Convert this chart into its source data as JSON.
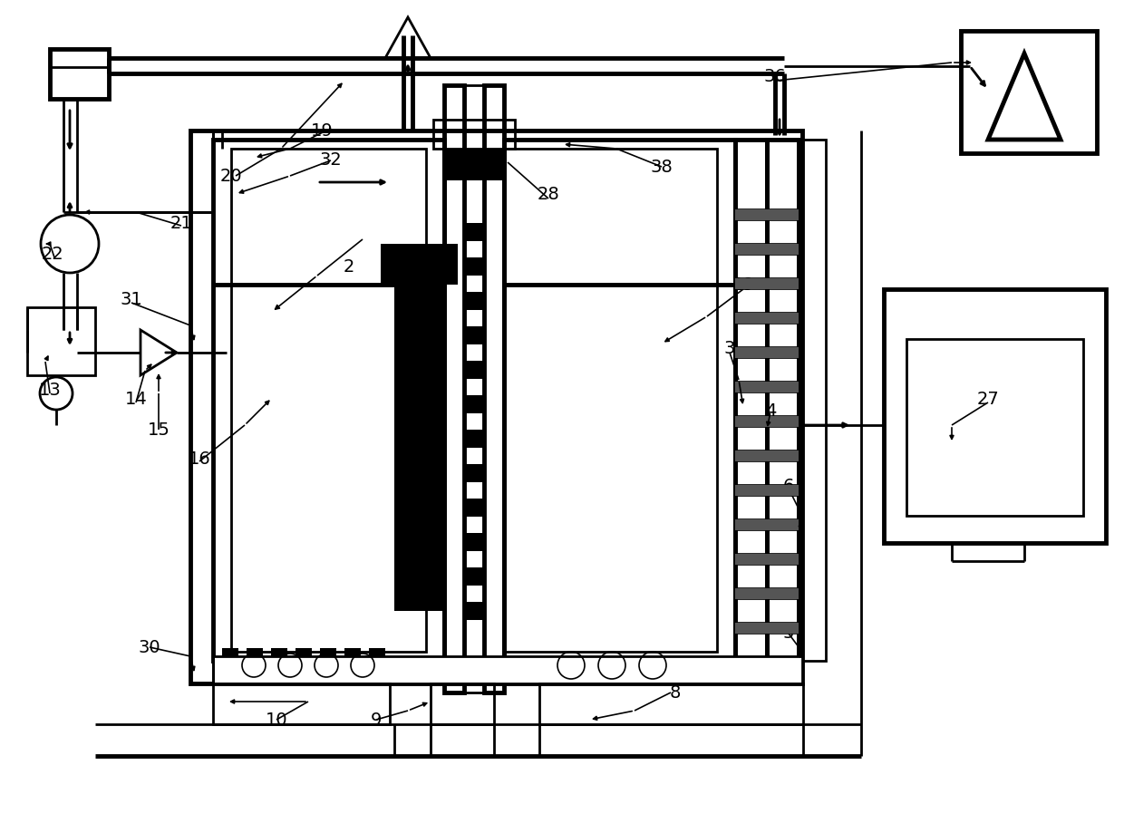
{
  "bg": "#ffffff",
  "lc": "#000000",
  "lw": 2.0,
  "lwb": 3.5,
  "lwt": 1.2,
  "fw": 12.4,
  "fh": 9.19,
  "xmax": 12.4,
  "ymax": 9.19
}
